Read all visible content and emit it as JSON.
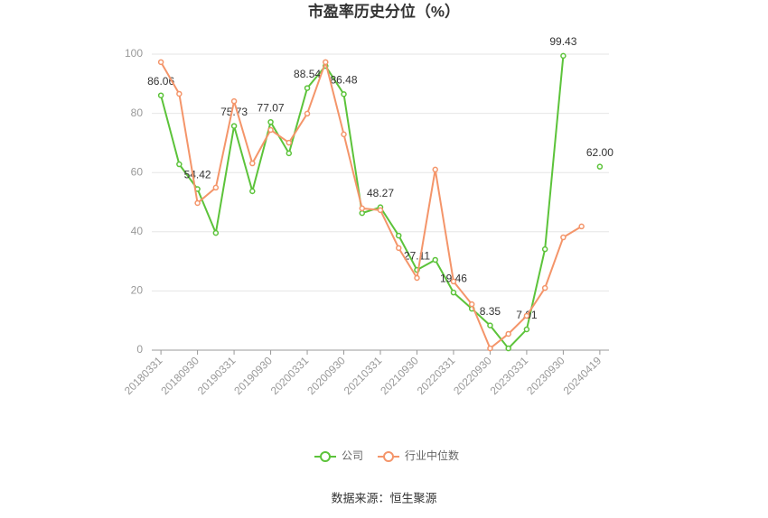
{
  "chart_data": {
    "type": "line",
    "title": "市盈率历史分位（%）",
    "source": "数据来源：恒生聚源",
    "categories": [
      "20180331",
      null,
      "20180930",
      null,
      "20190331",
      null,
      "20190930",
      null,
      "20200331",
      null,
      "20200930",
      null,
      "20210331",
      null,
      "20210930",
      null,
      "20220331",
      null,
      "20220930",
      null,
      "20230331",
      null,
      "20230930",
      null,
      "20240419"
    ],
    "series": [
      {
        "name": "公司",
        "color": "#5cc33a",
        "values": [
          86.06,
          62.8,
          54.42,
          39.6,
          75.73,
          53.7,
          77.07,
          66.5,
          88.54,
          96.0,
          86.48,
          46.3,
          48.27,
          38.7,
          27.11,
          30.5,
          19.46,
          14.0,
          8.35,
          0.6,
          7.01,
          34.1,
          99.43,
          null,
          62
        ],
        "value_labels": [
          "86.06",
          null,
          "54.42",
          null,
          "75.73",
          null,
          "77.07",
          null,
          "88.54",
          null,
          "86.48",
          null,
          "48.27",
          null,
          "27.11",
          null,
          "19.46",
          null,
          "8.35",
          null,
          "7.01",
          null,
          "99.43",
          null,
          "62.00"
        ]
      },
      {
        "name": "行业中位数",
        "color": "#f4956a",
        "values": [
          97.3,
          86.6,
          49.7,
          54.9,
          84.1,
          63.1,
          74.4,
          70.1,
          79.9,
          97.3,
          72.9,
          47.9,
          47.3,
          34.5,
          24.4,
          61.0,
          23.2,
          15.5,
          0.6,
          5.5,
          11.6,
          21.0,
          38.1,
          41.8,
          null
        ]
      }
    ],
    "ylim": [
      0,
      100
    ],
    "yticks": [
      0,
      20,
      40,
      60,
      80,
      100
    ],
    "grid": true,
    "legend": "bottom"
  }
}
